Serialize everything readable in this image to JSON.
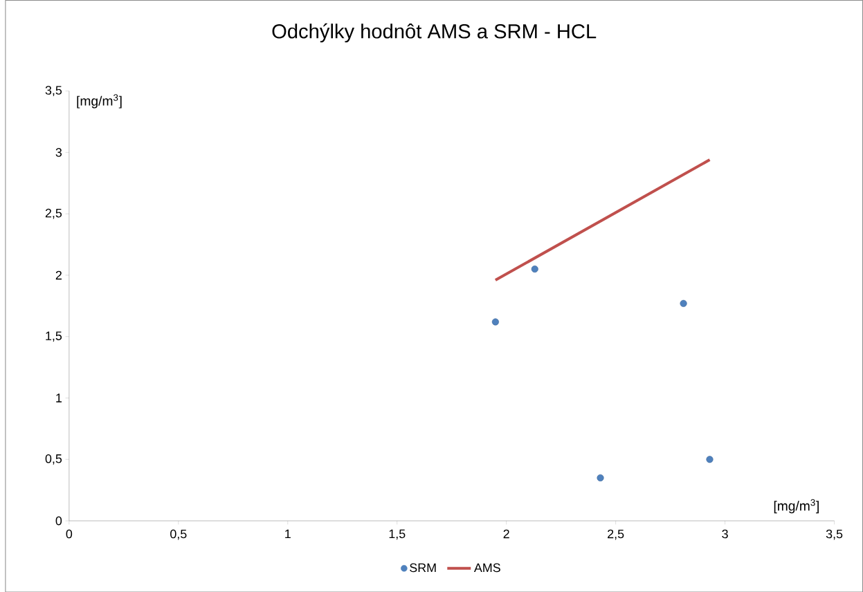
{
  "chart_data": {
    "type": "scatter",
    "title": "Odchýlky hodnôt AMS a SRM  -  HCL",
    "xlabel": "[mg/m$^{3}$]",
    "ylabel": "[mg/m$^{3}$]",
    "series": [
      {
        "name": "SRM",
        "marker": "circle",
        "color": "#4f81bd",
        "x": [
          1.95,
          2.13,
          2.43,
          2.81,
          2.93
        ],
        "values": [
          1.62,
          2.05,
          0.35,
          1.77,
          0.5
        ]
      },
      {
        "name": "AMS",
        "type": "line",
        "marker": "none",
        "color": "#c0504d",
        "x": [
          1.95,
          2.93
        ],
        "values": [
          1.96,
          2.94
        ]
      }
    ],
    "xlim": [
      0,
      3.5
    ],
    "ylim": [
      0,
      3.5
    ],
    "xticks": [
      0,
      {
        "value": 0.5,
        "label": "0,5"
      },
      1,
      {
        "value": 1.5,
        "label": "1,5"
      },
      2,
      {
        "value": 2.5,
        "label": "2,5"
      },
      3,
      {
        "value": 3.5,
        "label": "3,5"
      }
    ],
    "yticks": [
      0,
      {
        "value": 0.5,
        "label": "0,5"
      },
      1,
      {
        "value": 1.5,
        "label": "1,5"
      },
      2,
      {
        "value": 2.5,
        "label": "2,5"
      },
      3,
      {
        "value": 3.5,
        "label": "3,5"
      }
    ],
    "legend": "bottom"
  }
}
